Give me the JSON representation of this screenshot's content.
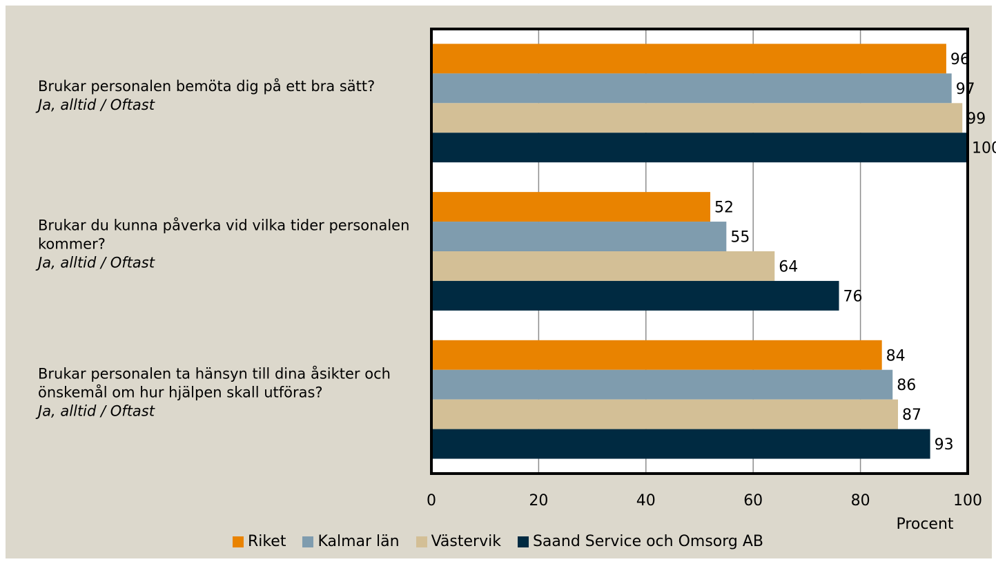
{
  "chart_data": {
    "type": "hbar",
    "categories": [
      "Brukar personalen bemöta dig på ett bra sätt?",
      "Brukar du kunna påverka vid vilka tider personalen kommer?",
      "Brukar personalen ta hänsyn till dina åsikter och önskemål om hur hjälpen skall utföras?"
    ],
    "category_notes": [
      "Ja, alltid / Oftast",
      "Ja, alltid / Oftast",
      "Ja, alltid / Oftast"
    ],
    "series": [
      {
        "name": "Riket",
        "color": "#e98300",
        "values": [
          96,
          52,
          84
        ]
      },
      {
        "name": "Kalmar län",
        "color": "#7f9cae",
        "values": [
          97,
          55,
          86
        ]
      },
      {
        "name": "Västervik",
        "color": "#d3bf96",
        "values": [
          99,
          64,
          87
        ]
      },
      {
        "name": "Saand Service och Omsorg AB",
        "color": "#002a41",
        "values": [
          100,
          76,
          93
        ]
      }
    ],
    "xlim": [
      0,
      100
    ],
    "xticks": [
      0,
      20,
      40,
      60,
      80,
      100
    ],
    "x_label": "Procent",
    "grid": true,
    "legend": "bottom"
  }
}
